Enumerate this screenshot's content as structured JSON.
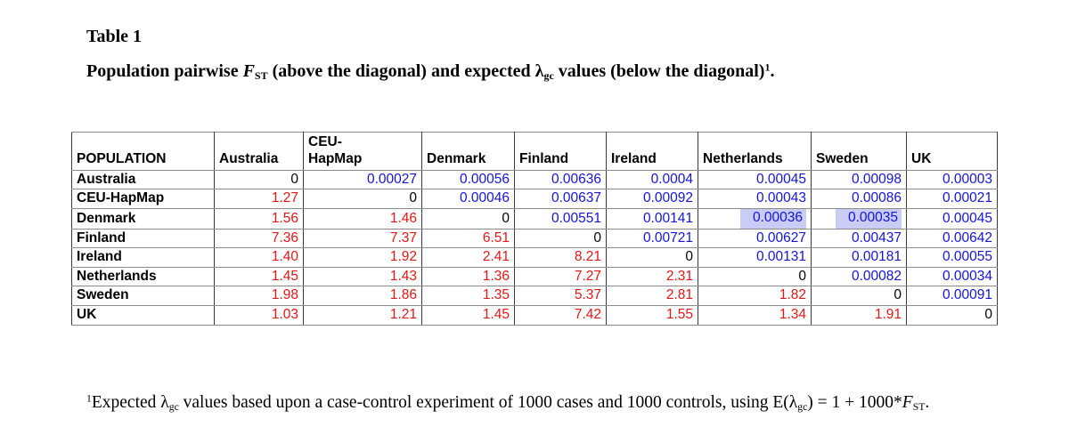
{
  "title": "Table 1",
  "caption": {
    "lead": "Population pairwise ",
    "f_symbol": "F",
    "f_sub": "ST",
    "mid": " (above the diagonal) and expected ",
    "lambda_symbol": "λ",
    "lambda_sub": "gc",
    "tail": " values (below the diagonal)",
    "footnote_ref": "1",
    "period": "."
  },
  "table": {
    "columns": [
      "POPULATION",
      "Australia",
      "CEU-\nHapMap",
      "Denmark",
      "Finland",
      "Ireland",
      "Netherlands",
      "Sweden",
      "UK"
    ],
    "rows": [
      {
        "label": "Australia",
        "values": [
          "0",
          "0.00027",
          "0.00056",
          "0.00636",
          "0.0004",
          "0.00045",
          "0.00098",
          "0.00003"
        ]
      },
      {
        "label": "CEU-HapMap",
        "values": [
          "1.27",
          "0",
          "0.00046",
          "0.00637",
          "0.00092",
          "0.00043",
          "0.00086",
          "0.00021"
        ]
      },
      {
        "label": "Denmark",
        "values": [
          "1.56",
          "1.46",
          "0",
          "0.00551",
          "0.00141",
          "0.00036",
          "0.00035",
          "0.00045"
        ]
      },
      {
        "label": "Finland",
        "values": [
          "7.36",
          "7.37",
          "6.51",
          "0",
          "0.00721",
          "0.00627",
          "0.00437",
          "0.00642"
        ]
      },
      {
        "label": "Ireland",
        "values": [
          "1.40",
          "1.92",
          "2.41",
          "8.21",
          "0",
          "0.00131",
          "0.00181",
          "0.00055"
        ]
      },
      {
        "label": "Netherlands",
        "values": [
          "1.45",
          "1.43",
          "1.36",
          "7.27",
          "2.31",
          "0",
          "0.00082",
          "0.00034"
        ]
      },
      {
        "label": "Sweden",
        "values": [
          "1.98",
          "1.86",
          "1.35",
          "5.37",
          "2.81",
          "1.82",
          "0",
          "0.00091"
        ]
      },
      {
        "label": "UK",
        "values": [
          "1.03",
          "1.21",
          "1.45",
          "7.42",
          "1.55",
          "1.34",
          "1.91",
          "0"
        ]
      }
    ],
    "highlighted_cells": [
      {
        "row": "Denmark",
        "col": "Netherlands"
      },
      {
        "row": "Denmark",
        "col": "Sweden"
      }
    ],
    "colors": {
      "fst_value_blue": "#1414d6",
      "lambda_value_red": "#e41616",
      "diagonal_black": "#000000",
      "highlight_lavender": "#c9ccf4"
    }
  },
  "footnote": {
    "ref": "1",
    "p1": "Expected ",
    "lambda1": "λ",
    "sub1": "gc",
    "p2": " values based upon a case-control experiment of 1000 cases and 1000 controls, using E(",
    "lambda2": "λ",
    "sub2": "gc",
    "p3": ") = 1 + 1000*",
    "f_symbol": "F",
    "sub3": "ST",
    "p4": "."
  }
}
